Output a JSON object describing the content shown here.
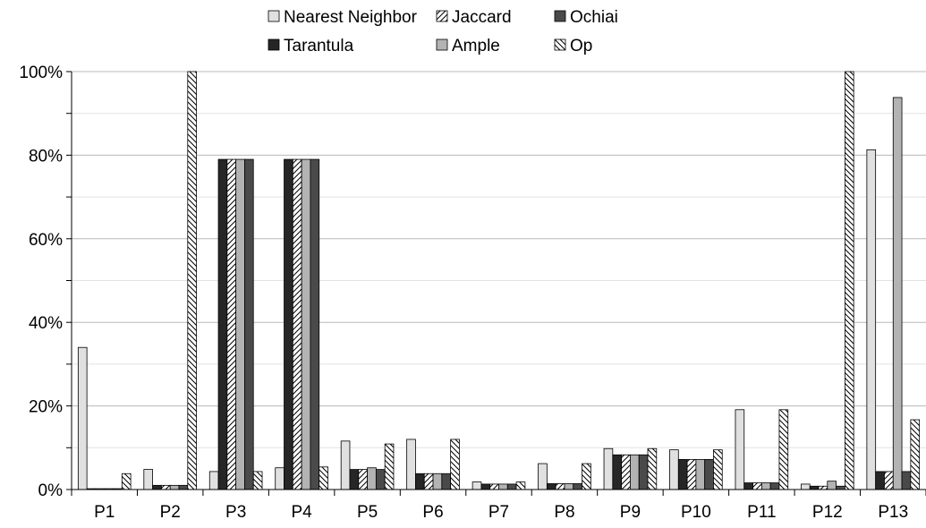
{
  "chart_data": {
    "type": "bar",
    "categories": [
      "P1",
      "P2",
      "P3",
      "P4",
      "P5",
      "P6",
      "P7",
      "P8",
      "P9",
      "P10",
      "P11",
      "P12",
      "P13"
    ],
    "ylim": [
      0,
      100
    ],
    "y_ticks": [
      "0%",
      "20%",
      "40%",
      "60%",
      "80%",
      "100%"
    ],
    "grid": "horizontal",
    "legend": "top",
    "series": [
      {
        "name": "Nearest Neighbor",
        "color": "#e0e0e0",
        "pattern": "solid",
        "values": [
          34,
          4.8,
          4.3,
          5.2,
          11.6,
          12.0,
          1.8,
          6.2,
          9.8,
          9.5,
          19.1,
          1.3,
          81.3
        ]
      },
      {
        "name": "Tarantula",
        "color": "#262626",
        "pattern": "solid",
        "values": [
          0.2,
          1.0,
          79.0,
          79.0,
          4.8,
          3.8,
          1.3,
          1.4,
          8.3,
          7.2,
          1.6,
          0.8,
          4.3
        ]
      },
      {
        "name": "Jaccard",
        "color": "#ffffff",
        "pattern": "hatch-right",
        "values": [
          0.2,
          1.0,
          79.0,
          79.0,
          4.8,
          3.8,
          1.3,
          1.4,
          8.3,
          7.2,
          1.6,
          0.8,
          4.3
        ]
      },
      {
        "name": "Ample",
        "color": "#b3b3b3",
        "pattern": "solid",
        "values": [
          0.2,
          1.0,
          79.0,
          79.0,
          5.2,
          3.8,
          1.3,
          1.4,
          8.3,
          7.2,
          1.6,
          2.0,
          93.8
        ]
      },
      {
        "name": "Ochiai",
        "color": "#4a4a4a",
        "pattern": "solid",
        "values": [
          0.2,
          1.0,
          79.0,
          79.0,
          4.8,
          3.8,
          1.3,
          1.4,
          8.3,
          7.2,
          1.6,
          0.8,
          4.3
        ]
      },
      {
        "name": "Op",
        "color": "#ffffff",
        "pattern": "hatch-left",
        "values": [
          3.8,
          100,
          4.3,
          5.4,
          10.9,
          12.0,
          1.8,
          6.2,
          9.8,
          9.5,
          19.1,
          100,
          16.7
        ]
      }
    ]
  }
}
